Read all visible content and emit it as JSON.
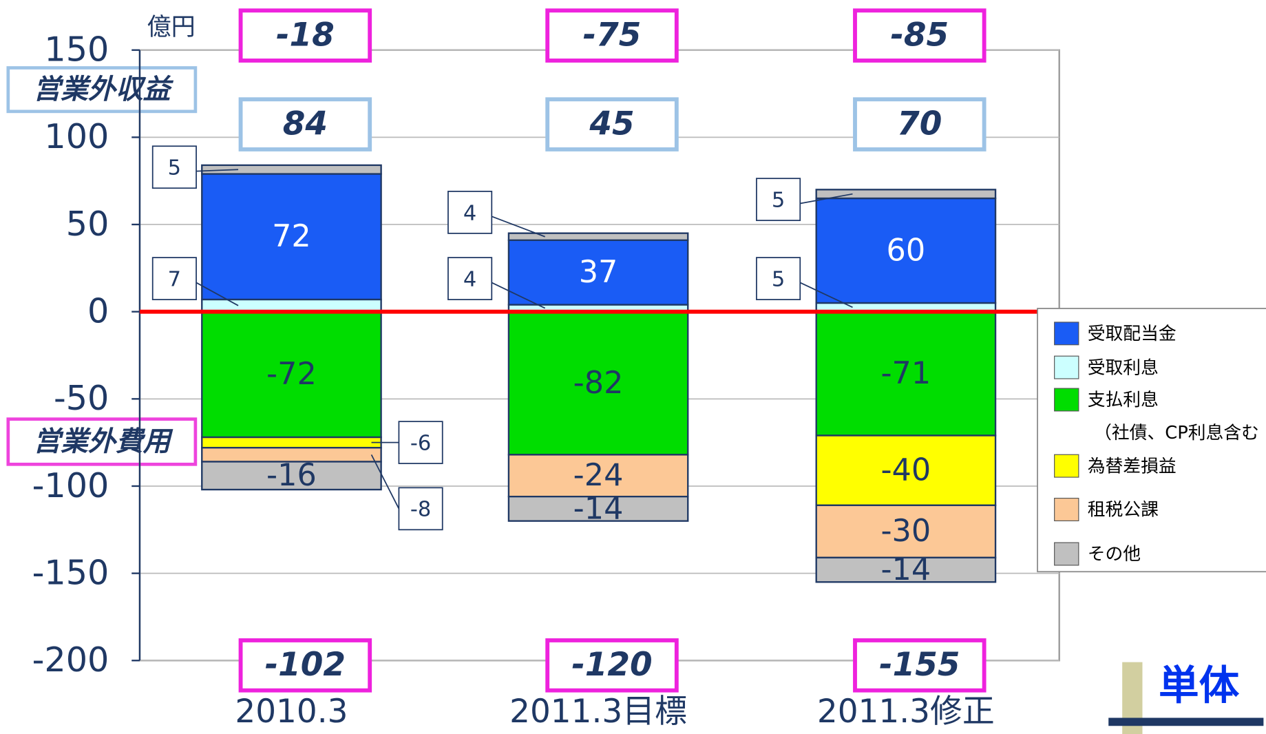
{
  "chart_data": {
    "type": "bar",
    "stacked": true,
    "unit": "億円",
    "categories": [
      "2010.3",
      "2011.3目標",
      "2011.3修正"
    ],
    "series": [
      {
        "name": "受取配当金",
        "color": "#1a5cf5",
        "values": [
          72,
          37,
          60
        ]
      },
      {
        "name": "受取利息",
        "color": "#ccffff",
        "values": [
          7,
          4,
          5
        ]
      },
      {
        "name": "支払利息",
        "color": "#00dd00",
        "values": [
          -72,
          -82,
          -71
        ]
      },
      {
        "name": "為替差損益",
        "color": "#ffff00",
        "values": [
          -6,
          null,
          -40
        ]
      },
      {
        "name": "租税公課",
        "color": "#fcc896",
        "values": [
          -8,
          -24,
          -30
        ]
      },
      {
        "name": "その他",
        "color": "#c0c0c0",
        "values": [
          -16,
          -14,
          -14
        ]
      },
      {
        "name": "その他",
        "color": "#c0c0c0",
        "values": [
          5,
          4,
          5
        ]
      }
    ],
    "ylim": [
      -200,
      150
    ],
    "yticks": [
      -200,
      -150,
      -100,
      -50,
      0,
      50,
      100,
      150
    ],
    "grid": true,
    "zero_line_color": "#ff0000",
    "legend_position": "right",
    "legend_note": "（社債、CP利息含む",
    "income_label": "営業外収益",
    "expense_label": "営業外費用",
    "income_totals": [
      84,
      45,
      70
    ],
    "expense_totals": [
      -102,
      -120,
      -155
    ],
    "net_totals": [
      -18,
      -75,
      -85
    ],
    "badge": "単体"
  }
}
